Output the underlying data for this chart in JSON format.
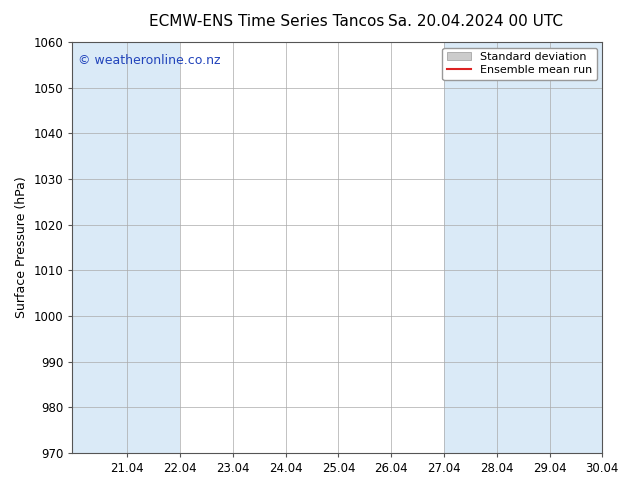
{
  "title_left": "ECMW-ENS Time Series Tancos",
  "title_right": "Sa. 20.04.2024 00 UTC",
  "ylabel": "Surface Pressure (hPa)",
  "xlabel": "",
  "ylim": [
    970,
    1060
  ],
  "yticks": [
    970,
    980,
    990,
    1000,
    1010,
    1020,
    1030,
    1040,
    1050,
    1060
  ],
  "xlim": [
    20.0,
    30.04
  ],
  "xtick_positions": [
    21.04,
    22.04,
    23.04,
    24.04,
    25.04,
    26.04,
    27.04,
    28.04,
    29.04,
    30.04
  ],
  "xtick_labels": [
    "21.04",
    "22.04",
    "23.04",
    "24.04",
    "25.04",
    "26.04",
    "27.04",
    "28.04",
    "29.04",
    "30.04"
  ],
  "shaded_bands": [
    {
      "x_start": 20.0,
      "x_end": 22.04,
      "color": "#daeaf7"
    },
    {
      "x_start": 27.04,
      "x_end": 30.04,
      "color": "#daeaf7"
    }
  ],
  "vertical_lines": [
    21.04,
    22.04,
    23.04,
    24.04,
    25.04,
    26.04,
    27.04,
    28.04,
    29.04,
    30.04
  ],
  "bg_color": "#ffffff",
  "plot_bg_color": "#ffffff",
  "grid_color": "#aaaaaa",
  "border_color": "#555555",
  "watermark_text": "© weatheronline.co.nz",
  "watermark_color": "#2244bb",
  "legend_std_color": "#cccccc",
  "legend_mean_color": "#dd2222",
  "title_fontsize": 11,
  "axis_fontsize": 9,
  "tick_fontsize": 8.5,
  "watermark_fontsize": 9
}
